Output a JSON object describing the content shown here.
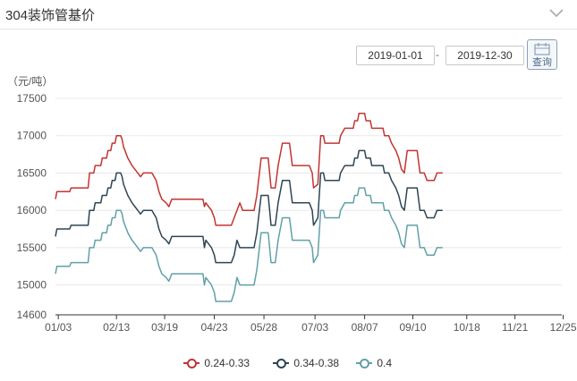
{
  "header": {
    "title": "304装饰管基价",
    "collapse_icon": "chevron-down-icon"
  },
  "filters": {
    "start_date": "2019-01-01",
    "separator": "-",
    "end_date": "2019-12-30",
    "query_label": "查询",
    "query_icon": "search-icon"
  },
  "chart_data": {
    "type": "line",
    "title": "",
    "ylabel": "（元/吨）",
    "xlabel": "",
    "ylim": [
      14600,
      17500
    ],
    "yticks": [
      14600,
      15000,
      15500,
      16000,
      16500,
      17000,
      17500
    ],
    "xlim": [
      0,
      357
    ],
    "x_tick_labels": [
      "01/03",
      "02/13",
      "03/19",
      "04/23",
      "05/28",
      "07/03",
      "08/07",
      "09/10",
      "10/18",
      "11/21",
      "12/25"
    ],
    "x_tick_days": [
      2,
      43,
      77,
      112,
      147,
      183,
      218,
      252,
      290,
      324,
      358
    ],
    "grid": "horizontal",
    "legend_position": "bottom",
    "colors": [
      "#c23531",
      "#2f4554",
      "#61a0a8"
    ],
    "series": [
      {
        "name": "0.24-0.33",
        "points": [
          [
            0,
            16150
          ],
          [
            1,
            16250
          ],
          [
            10,
            16250
          ],
          [
            11,
            16300
          ],
          [
            23,
            16300
          ],
          [
            24,
            16500
          ],
          [
            27,
            16500
          ],
          [
            28,
            16600
          ],
          [
            32,
            16600
          ],
          [
            33,
            16700
          ],
          [
            36,
            16700
          ],
          [
            37,
            16800
          ],
          [
            39,
            16800
          ],
          [
            40,
            16900
          ],
          [
            42,
            16900
          ],
          [
            43,
            17000
          ],
          [
            46,
            17000
          ],
          [
            47,
            16950
          ],
          [
            48,
            16850
          ],
          [
            51,
            16700
          ],
          [
            54,
            16600
          ],
          [
            56,
            16550
          ],
          [
            58,
            16500
          ],
          [
            60,
            16450
          ],
          [
            62,
            16500
          ],
          [
            68,
            16500
          ],
          [
            71,
            16400
          ],
          [
            73,
            16250
          ],
          [
            75,
            16150
          ],
          [
            78,
            16100
          ],
          [
            80,
            16050
          ],
          [
            82,
            16150
          ],
          [
            104,
            16150
          ],
          [
            105,
            16050
          ],
          [
            106,
            16100
          ],
          [
            108,
            16050
          ],
          [
            110,
            16000
          ],
          [
            112,
            15900
          ],
          [
            113,
            15800
          ],
          [
            124,
            15800
          ],
          [
            126,
            15900
          ],
          [
            128,
            16000
          ],
          [
            130,
            16100
          ],
          [
            132,
            16000
          ],
          [
            140,
            16000
          ],
          [
            142,
            16200
          ],
          [
            145,
            16700
          ],
          [
            150,
            16700
          ],
          [
            151,
            16500
          ],
          [
            152,
            16300
          ],
          [
            155,
            16300
          ],
          [
            157,
            16600
          ],
          [
            160,
            16900
          ],
          [
            165,
            16900
          ],
          [
            167,
            16600
          ],
          [
            179,
            16600
          ],
          [
            181,
            16500
          ],
          [
            182,
            16300
          ],
          [
            185,
            16350
          ],
          [
            187,
            17000
          ],
          [
            189,
            17000
          ],
          [
            190,
            16900
          ],
          [
            200,
            16900
          ],
          [
            201,
            17000
          ],
          [
            204,
            17100
          ],
          [
            210,
            17100
          ],
          [
            211,
            17200
          ],
          [
            213,
            17200
          ],
          [
            214,
            17300
          ],
          [
            218,
            17300
          ],
          [
            219,
            17200
          ],
          [
            222,
            17200
          ],
          [
            223,
            17100
          ],
          [
            231,
            17100
          ],
          [
            232,
            17000
          ],
          [
            235,
            17000
          ],
          [
            237,
            16900
          ],
          [
            240,
            16800
          ],
          [
            242,
            16700
          ],
          [
            244,
            16550
          ],
          [
            246,
            16500
          ],
          [
            248,
            16800
          ],
          [
            255,
            16800
          ],
          [
            257,
            16500
          ],
          [
            260,
            16500
          ],
          [
            262,
            16400
          ],
          [
            267,
            16400
          ],
          [
            269,
            16500
          ],
          [
            273,
            16500
          ]
        ]
      },
      {
        "name": "0.34-0.38",
        "points": [
          [
            0,
            15650
          ],
          [
            1,
            15750
          ],
          [
            10,
            15750
          ],
          [
            11,
            15800
          ],
          [
            23,
            15800
          ],
          [
            24,
            16000
          ],
          [
            27,
            16000
          ],
          [
            28,
            16100
          ],
          [
            32,
            16100
          ],
          [
            33,
            16200
          ],
          [
            36,
            16200
          ],
          [
            37,
            16300
          ],
          [
            39,
            16300
          ],
          [
            40,
            16400
          ],
          [
            42,
            16400
          ],
          [
            43,
            16500
          ],
          [
            46,
            16500
          ],
          [
            47,
            16450
          ],
          [
            48,
            16350
          ],
          [
            51,
            16200
          ],
          [
            54,
            16100
          ],
          [
            56,
            16050
          ],
          [
            58,
            16000
          ],
          [
            60,
            15950
          ],
          [
            62,
            16000
          ],
          [
            68,
            16000
          ],
          [
            71,
            15900
          ],
          [
            73,
            15750
          ],
          [
            75,
            15650
          ],
          [
            78,
            15600
          ],
          [
            80,
            15550
          ],
          [
            82,
            15650
          ],
          [
            104,
            15650
          ],
          [
            105,
            15500
          ],
          [
            106,
            15600
          ],
          [
            108,
            15550
          ],
          [
            110,
            15500
          ],
          [
            112,
            15400
          ],
          [
            113,
            15300
          ],
          [
            124,
            15300
          ],
          [
            126,
            15400
          ],
          [
            128,
            15600
          ],
          [
            130,
            15500
          ],
          [
            140,
            15500
          ],
          [
            142,
            15700
          ],
          [
            145,
            16200
          ],
          [
            150,
            16200
          ],
          [
            151,
            16000
          ],
          [
            152,
            15800
          ],
          [
            155,
            15800
          ],
          [
            157,
            16100
          ],
          [
            160,
            16400
          ],
          [
            165,
            16400
          ],
          [
            167,
            16100
          ],
          [
            179,
            16100
          ],
          [
            181,
            16000
          ],
          [
            182,
            15800
          ],
          [
            185,
            15900
          ],
          [
            187,
            16500
          ],
          [
            189,
            16500
          ],
          [
            190,
            16400
          ],
          [
            200,
            16400
          ],
          [
            201,
            16500
          ],
          [
            204,
            16600
          ],
          [
            210,
            16600
          ],
          [
            211,
            16700
          ],
          [
            213,
            16700
          ],
          [
            214,
            16800
          ],
          [
            218,
            16800
          ],
          [
            219,
            16700
          ],
          [
            222,
            16700
          ],
          [
            223,
            16600
          ],
          [
            231,
            16600
          ],
          [
            232,
            16500
          ],
          [
            235,
            16500
          ],
          [
            237,
            16400
          ],
          [
            240,
            16300
          ],
          [
            242,
            16200
          ],
          [
            244,
            16050
          ],
          [
            246,
            16000
          ],
          [
            248,
            16300
          ],
          [
            255,
            16300
          ],
          [
            257,
            16000
          ],
          [
            260,
            16000
          ],
          [
            262,
            15900
          ],
          [
            267,
            15900
          ],
          [
            269,
            16000
          ],
          [
            273,
            16000
          ]
        ]
      },
      {
        "name": "0.4",
        "points": [
          [
            0,
            15150
          ],
          [
            1,
            15250
          ],
          [
            10,
            15250
          ],
          [
            11,
            15300
          ],
          [
            23,
            15300
          ],
          [
            24,
            15500
          ],
          [
            27,
            15500
          ],
          [
            28,
            15600
          ],
          [
            32,
            15600
          ],
          [
            33,
            15700
          ],
          [
            36,
            15700
          ],
          [
            37,
            15800
          ],
          [
            39,
            15800
          ],
          [
            40,
            15900
          ],
          [
            42,
            15900
          ],
          [
            43,
            16000
          ],
          [
            46,
            16000
          ],
          [
            47,
            15950
          ],
          [
            48,
            15850
          ],
          [
            51,
            15700
          ],
          [
            54,
            15600
          ],
          [
            56,
            15550
          ],
          [
            58,
            15500
          ],
          [
            60,
            15450
          ],
          [
            62,
            15500
          ],
          [
            68,
            15500
          ],
          [
            71,
            15400
          ],
          [
            73,
            15250
          ],
          [
            75,
            15150
          ],
          [
            78,
            15100
          ],
          [
            80,
            15050
          ],
          [
            82,
            15150
          ],
          [
            104,
            15150
          ],
          [
            105,
            15000
          ],
          [
            106,
            15100
          ],
          [
            108,
            15050
          ],
          [
            110,
            15000
          ],
          [
            112,
            14900
          ],
          [
            113,
            14780
          ],
          [
            124,
            14780
          ],
          [
            126,
            14900
          ],
          [
            128,
            15100
          ],
          [
            130,
            15000
          ],
          [
            140,
            15000
          ],
          [
            142,
            15200
          ],
          [
            145,
            15700
          ],
          [
            150,
            15700
          ],
          [
            151,
            15500
          ],
          [
            152,
            15300
          ],
          [
            155,
            15300
          ],
          [
            157,
            15600
          ],
          [
            160,
            15900
          ],
          [
            165,
            15900
          ],
          [
            167,
            15600
          ],
          [
            179,
            15600
          ],
          [
            181,
            15500
          ],
          [
            182,
            15300
          ],
          [
            185,
            15400
          ],
          [
            187,
            16000
          ],
          [
            189,
            16000
          ],
          [
            190,
            15900
          ],
          [
            200,
            15900
          ],
          [
            201,
            16000
          ],
          [
            204,
            16100
          ],
          [
            210,
            16100
          ],
          [
            211,
            16200
          ],
          [
            213,
            16200
          ],
          [
            214,
            16300
          ],
          [
            218,
            16300
          ],
          [
            219,
            16200
          ],
          [
            222,
            16200
          ],
          [
            223,
            16100
          ],
          [
            231,
            16100
          ],
          [
            232,
            16000
          ],
          [
            235,
            16000
          ],
          [
            237,
            15900
          ],
          [
            240,
            15800
          ],
          [
            242,
            15700
          ],
          [
            244,
            15550
          ],
          [
            246,
            15500
          ],
          [
            248,
            15800
          ],
          [
            255,
            15800
          ],
          [
            257,
            15500
          ],
          [
            260,
            15500
          ],
          [
            262,
            15400
          ],
          [
            267,
            15400
          ],
          [
            269,
            15500
          ],
          [
            273,
            15500
          ]
        ]
      }
    ]
  }
}
